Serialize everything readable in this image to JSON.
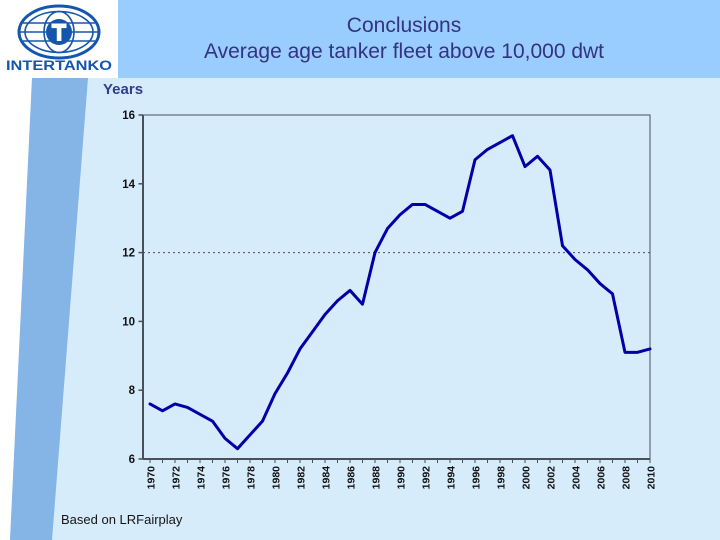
{
  "slide": {
    "title_line1": "Conclusions",
    "title_line2": "Average age tanker fleet above 10,000 dwt",
    "source_note": "Based on LRFairplay",
    "logo_text": "INTERTANKO"
  },
  "colors": {
    "header_band": "#99ccff",
    "content_bg": "#d6ecfb",
    "side_stripe": "#84b5e6",
    "title_text": "#333380",
    "years_label": "#2f3e8e",
    "axis": "#49505a",
    "tick_text": "#111111",
    "line": "#0000a8",
    "logo_blue": "#1456ad"
  },
  "chart_data": {
    "type": "line",
    "title": "",
    "xlabel": "",
    "ylabel": "Years",
    "ylim": [
      6,
      16
    ],
    "yticks": [
      6,
      8,
      10,
      12,
      14,
      16
    ],
    "xticks": [
      1970,
      1972,
      1974,
      1976,
      1978,
      1980,
      1982,
      1984,
      1986,
      1988,
      1990,
      1992,
      1994,
      1996,
      1998,
      2000,
      2002,
      2004,
      2006,
      2008,
      2010
    ],
    "gridline_at": 12,
    "grid": "single dotted horizontal line at y=12",
    "legend_position": "none",
    "x": [
      1970,
      1971,
      1972,
      1973,
      1974,
      1975,
      1976,
      1977,
      1978,
      1979,
      1980,
      1981,
      1982,
      1983,
      1984,
      1985,
      1986,
      1987,
      1988,
      1989,
      1990,
      1991,
      1992,
      1993,
      1994,
      1995,
      1996,
      1997,
      1998,
      1999,
      2000,
      2001,
      2002,
      2003,
      2004,
      2005,
      2006,
      2007,
      2008,
      2009,
      2010
    ],
    "series": [
      {
        "name": "Average age tanker fleet above 10,000 dwt",
        "values": [
          7.6,
          7.4,
          7.6,
          7.5,
          7.3,
          7.1,
          6.6,
          6.3,
          6.7,
          7.1,
          7.9,
          8.5,
          9.2,
          9.7,
          10.2,
          10.6,
          10.9,
          10.5,
          12.0,
          12.7,
          13.1,
          13.4,
          13.4,
          13.2,
          13.0,
          13.2,
          14.7,
          15.0,
          15.2,
          15.4,
          14.5,
          14.8,
          14.4,
          12.2,
          11.8,
          11.5,
          11.1,
          10.8,
          9.1,
          9.1,
          9.2
        ]
      }
    ]
  }
}
